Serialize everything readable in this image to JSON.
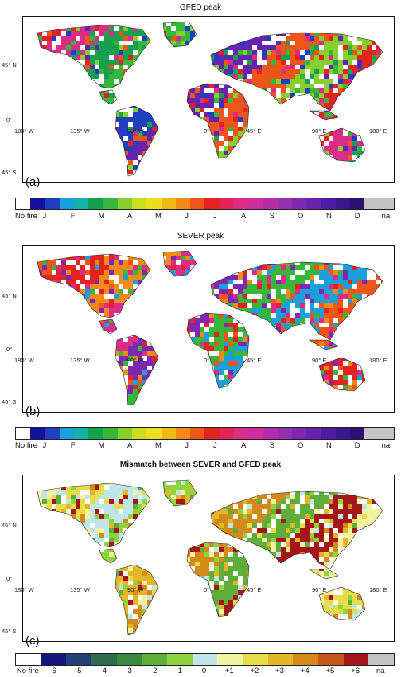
{
  "panels": [
    {
      "title": "GFED peak",
      "letter": "(a)",
      "legend_labels": [
        "No fire",
        "J",
        "",
        "F",
        "",
        "M",
        "",
        "A",
        "",
        "M",
        "",
        "J",
        "",
        "J",
        "",
        "A",
        "",
        "S",
        "",
        "O",
        "",
        "N",
        "",
        "D",
        "",
        "na"
      ],
      "legend_colors": [
        "#ffffff",
        "#12129a",
        "#1f3fc0",
        "#1aa0d8",
        "#13b2a8",
        "#15a050",
        "#38b63a",
        "#86cf2f",
        "#c9dd22",
        "#eedf1c",
        "#f2b818",
        "#f38a17",
        "#ef5418",
        "#e42222",
        "#e1255a",
        "#dc2d86",
        "#cf2c9e",
        "#b32ca8",
        "#9530ad",
        "#7d28ae",
        "#6623ab",
        "#4e1c9e",
        "#3a1688",
        "#2e1072",
        "#c4c4c4",
        "#c4c4c4"
      ]
    },
    {
      "title": "SEVER peak",
      "letter": "(b)",
      "legend_labels": [
        "No fire",
        "J",
        "",
        "F",
        "",
        "M",
        "",
        "A",
        "",
        "M",
        "",
        "J",
        "",
        "J",
        "",
        "A",
        "",
        "S",
        "",
        "O",
        "",
        "N",
        "",
        "D",
        "",
        "na"
      ],
      "legend_colors": [
        "#ffffff",
        "#12129a",
        "#1f3fc0",
        "#1aa0d8",
        "#13b2a8",
        "#15a050",
        "#38b63a",
        "#86cf2f",
        "#c9dd22",
        "#eedf1c",
        "#f2b818",
        "#f38a17",
        "#ef5418",
        "#e42222",
        "#e1255a",
        "#dc2d86",
        "#cf2c9e",
        "#b32ca8",
        "#9530ad",
        "#7d28ae",
        "#6623ab",
        "#4e1c9e",
        "#3a1688",
        "#2e1072",
        "#c4c4c4",
        "#c4c4c4"
      ]
    },
    {
      "title": "Mismatch between SEVER and GFED peak",
      "letter": "(c)",
      "legend_labels": [
        "No fire",
        "-6",
        "-5",
        "-4",
        "-3",
        "-2",
        "-1",
        "0",
        "+1",
        "+2",
        "+3",
        "+4",
        "+5",
        "+6",
        "na"
      ],
      "legend_colors": [
        "#ffffff",
        "#14147e",
        "#24407a",
        "#2f6b4e",
        "#3b8a3e",
        "#5fae3a",
        "#8ed43f",
        "#bfe6e8",
        "#f1f3a2",
        "#e7dc4a",
        "#e3b62a",
        "#d48a1b",
        "#c7561a",
        "#a4161a",
        "#c4c4c4"
      ]
    }
  ],
  "axes": {
    "lat_labels": [
      "45° N",
      "0°",
      "45° S"
    ],
    "lon_labels": [
      "180° W",
      "135° W",
      "90° W",
      "0°",
      "45° E",
      "90° E",
      "180° E"
    ]
  },
  "map_palettes": {
    "a": [
      "#e42222",
      "#dc2d86",
      "#15a050",
      "#38b63a",
      "#1f3fc0",
      "#6623ab",
      "#ef5418",
      "#86cf2f"
    ],
    "b": [
      "#ef5418",
      "#e42222",
      "#f38a17",
      "#dc2d86",
      "#7d28ae",
      "#38b63a",
      "#1aa0d8"
    ],
    "c": [
      "#f1f3a2",
      "#e7dc4a",
      "#bfe6e8",
      "#8ed43f",
      "#e3b62a",
      "#d48a1b",
      "#5fae3a",
      "#a4161a"
    ]
  }
}
